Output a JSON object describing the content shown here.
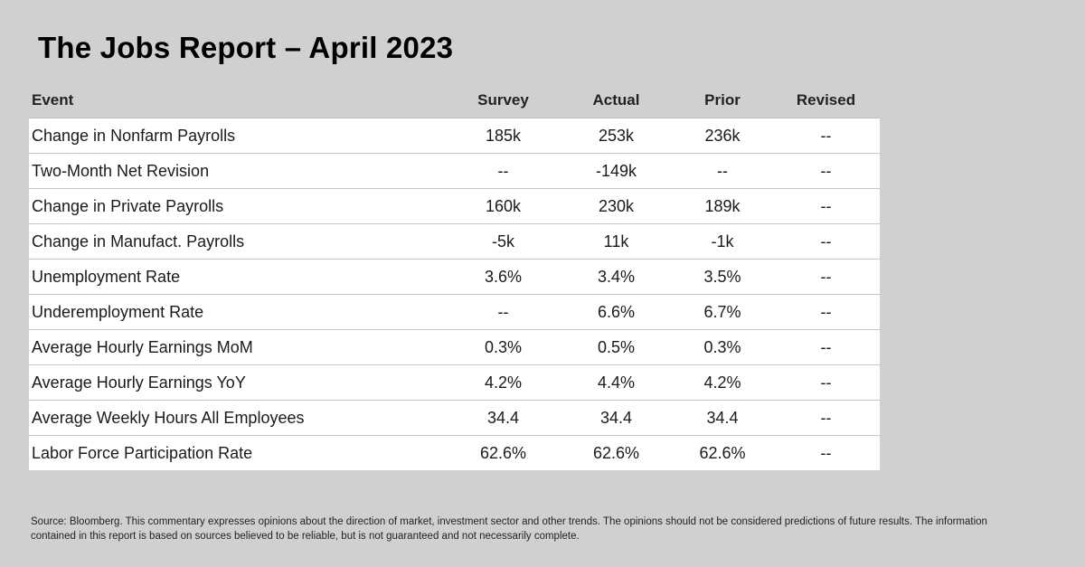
{
  "title": "The Jobs Report – April 2023",
  "source_note": "Source: Bloomberg. This commentary expresses opinions about the direction of market, investment sector and other trends. The opinions should not be considered predictions of future results. The information contained in this report is based on sources believed to be reliable, but is not guaranteed and not necessarily complete.",
  "colors": {
    "background": "#d0d0d0",
    "row_background": "#ffffff",
    "title": "#000000"
  },
  "chart_data": {
    "type": "table",
    "title": "The Jobs Report – April 2023",
    "columns": [
      "Event",
      "Survey",
      "Actual",
      "Prior",
      "Revised"
    ],
    "rows": [
      {
        "event": "Change in Nonfarm Payrolls",
        "survey": "185k",
        "actual": "253k",
        "prior": "236k",
        "revised": "--"
      },
      {
        "event": "Two-Month Net Revision",
        "survey": "--",
        "actual": "-149k",
        "prior": "--",
        "revised": "--"
      },
      {
        "event": "Change in Private Payrolls",
        "survey": "160k",
        "actual": "230k",
        "prior": "189k",
        "revised": "--"
      },
      {
        "event": "Change in Manufact. Payrolls",
        "survey": "-5k",
        "actual": "11k",
        "prior": "-1k",
        "revised": "--"
      },
      {
        "event": "Unemployment Rate",
        "survey": "3.6%",
        "actual": "3.4%",
        "prior": "3.5%",
        "revised": "--"
      },
      {
        "event": "Underemployment Rate",
        "survey": "--",
        "actual": "6.6%",
        "prior": "6.7%",
        "revised": "--"
      },
      {
        "event": "Average Hourly Earnings MoM",
        "survey": "0.3%",
        "actual": "0.5%",
        "prior": "0.3%",
        "revised": "--"
      },
      {
        "event": "Average Hourly Earnings YoY",
        "survey": "4.2%",
        "actual": "4.4%",
        "prior": "4.2%",
        "revised": "--"
      },
      {
        "event": "Average Weekly Hours All Employees",
        "survey": "34.4",
        "actual": "34.4",
        "prior": "34.4",
        "revised": "--"
      },
      {
        "event": "Labor Force Participation Rate",
        "survey": "62.6%",
        "actual": "62.6%",
        "prior": "62.6%",
        "revised": "--"
      }
    ]
  }
}
